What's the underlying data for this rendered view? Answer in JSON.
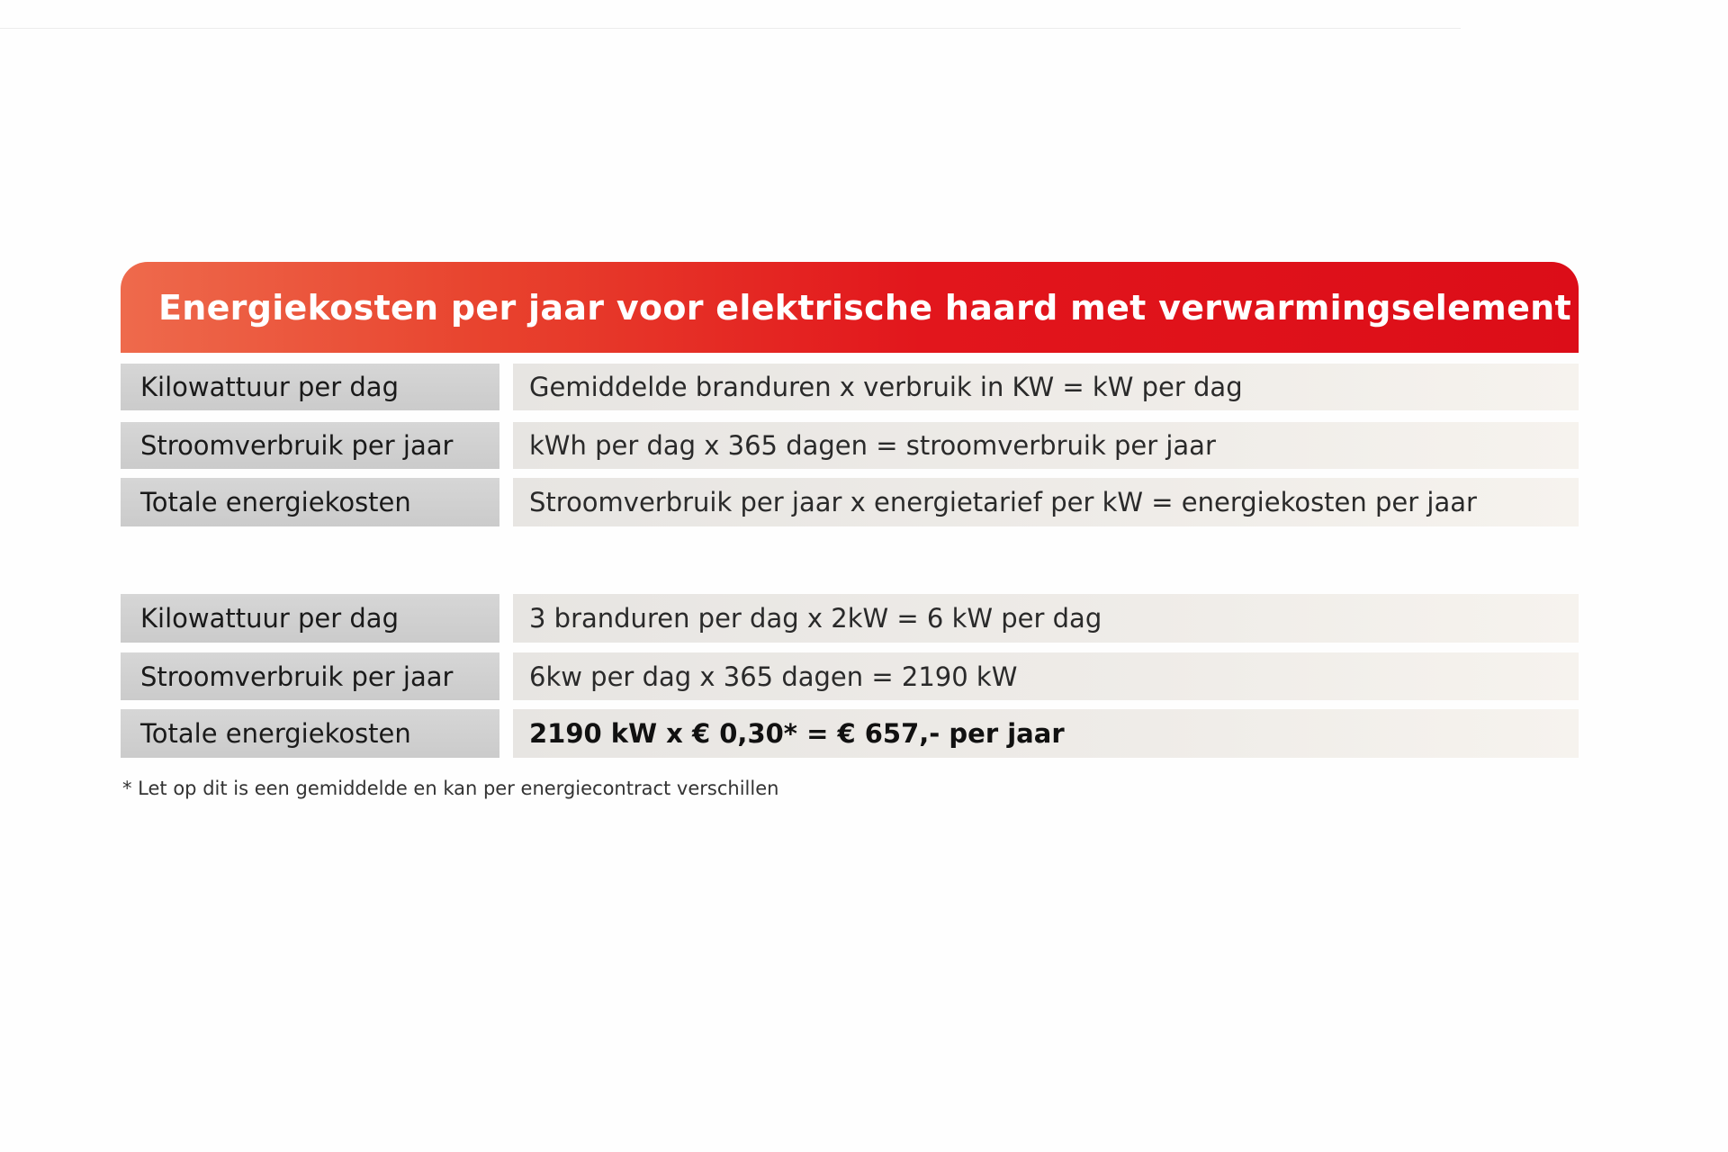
{
  "title": "Energiekosten per jaar voor elektrische haard met verwarmingselement",
  "formula_rows": [
    {
      "label": "Kilowattuur per dag",
      "value": "Gemiddelde branduren x verbruik in KW = kW per dag"
    },
    {
      "label": "Stroomverbruik per jaar",
      "value": "kWh per dag x 365 dagen = stroomverbruik per jaar"
    },
    {
      "label": "Totale energiekosten",
      "value": "Stroomverbruik per jaar x energietarief per kW = energiekosten per jaar"
    }
  ],
  "example_rows": [
    {
      "label": "Kilowattuur per dag",
      "value": "3 branduren per dag x 2kW = 6 kW per dag"
    },
    {
      "label": "Stroomverbruik per jaar",
      "value": "6kw per dag x 365 dagen = 2190 kW"
    },
    {
      "label": "Totale energiekosten",
      "value": "2190 kW x € 0,30* = € 657,- per jaar"
    }
  ],
  "footnote": "* Let op dit is een gemiddelde en kan per energiecontract verschillen",
  "colors": {
    "header_start": "#ee6a4c",
    "header_end": "#dc0d18"
  }
}
